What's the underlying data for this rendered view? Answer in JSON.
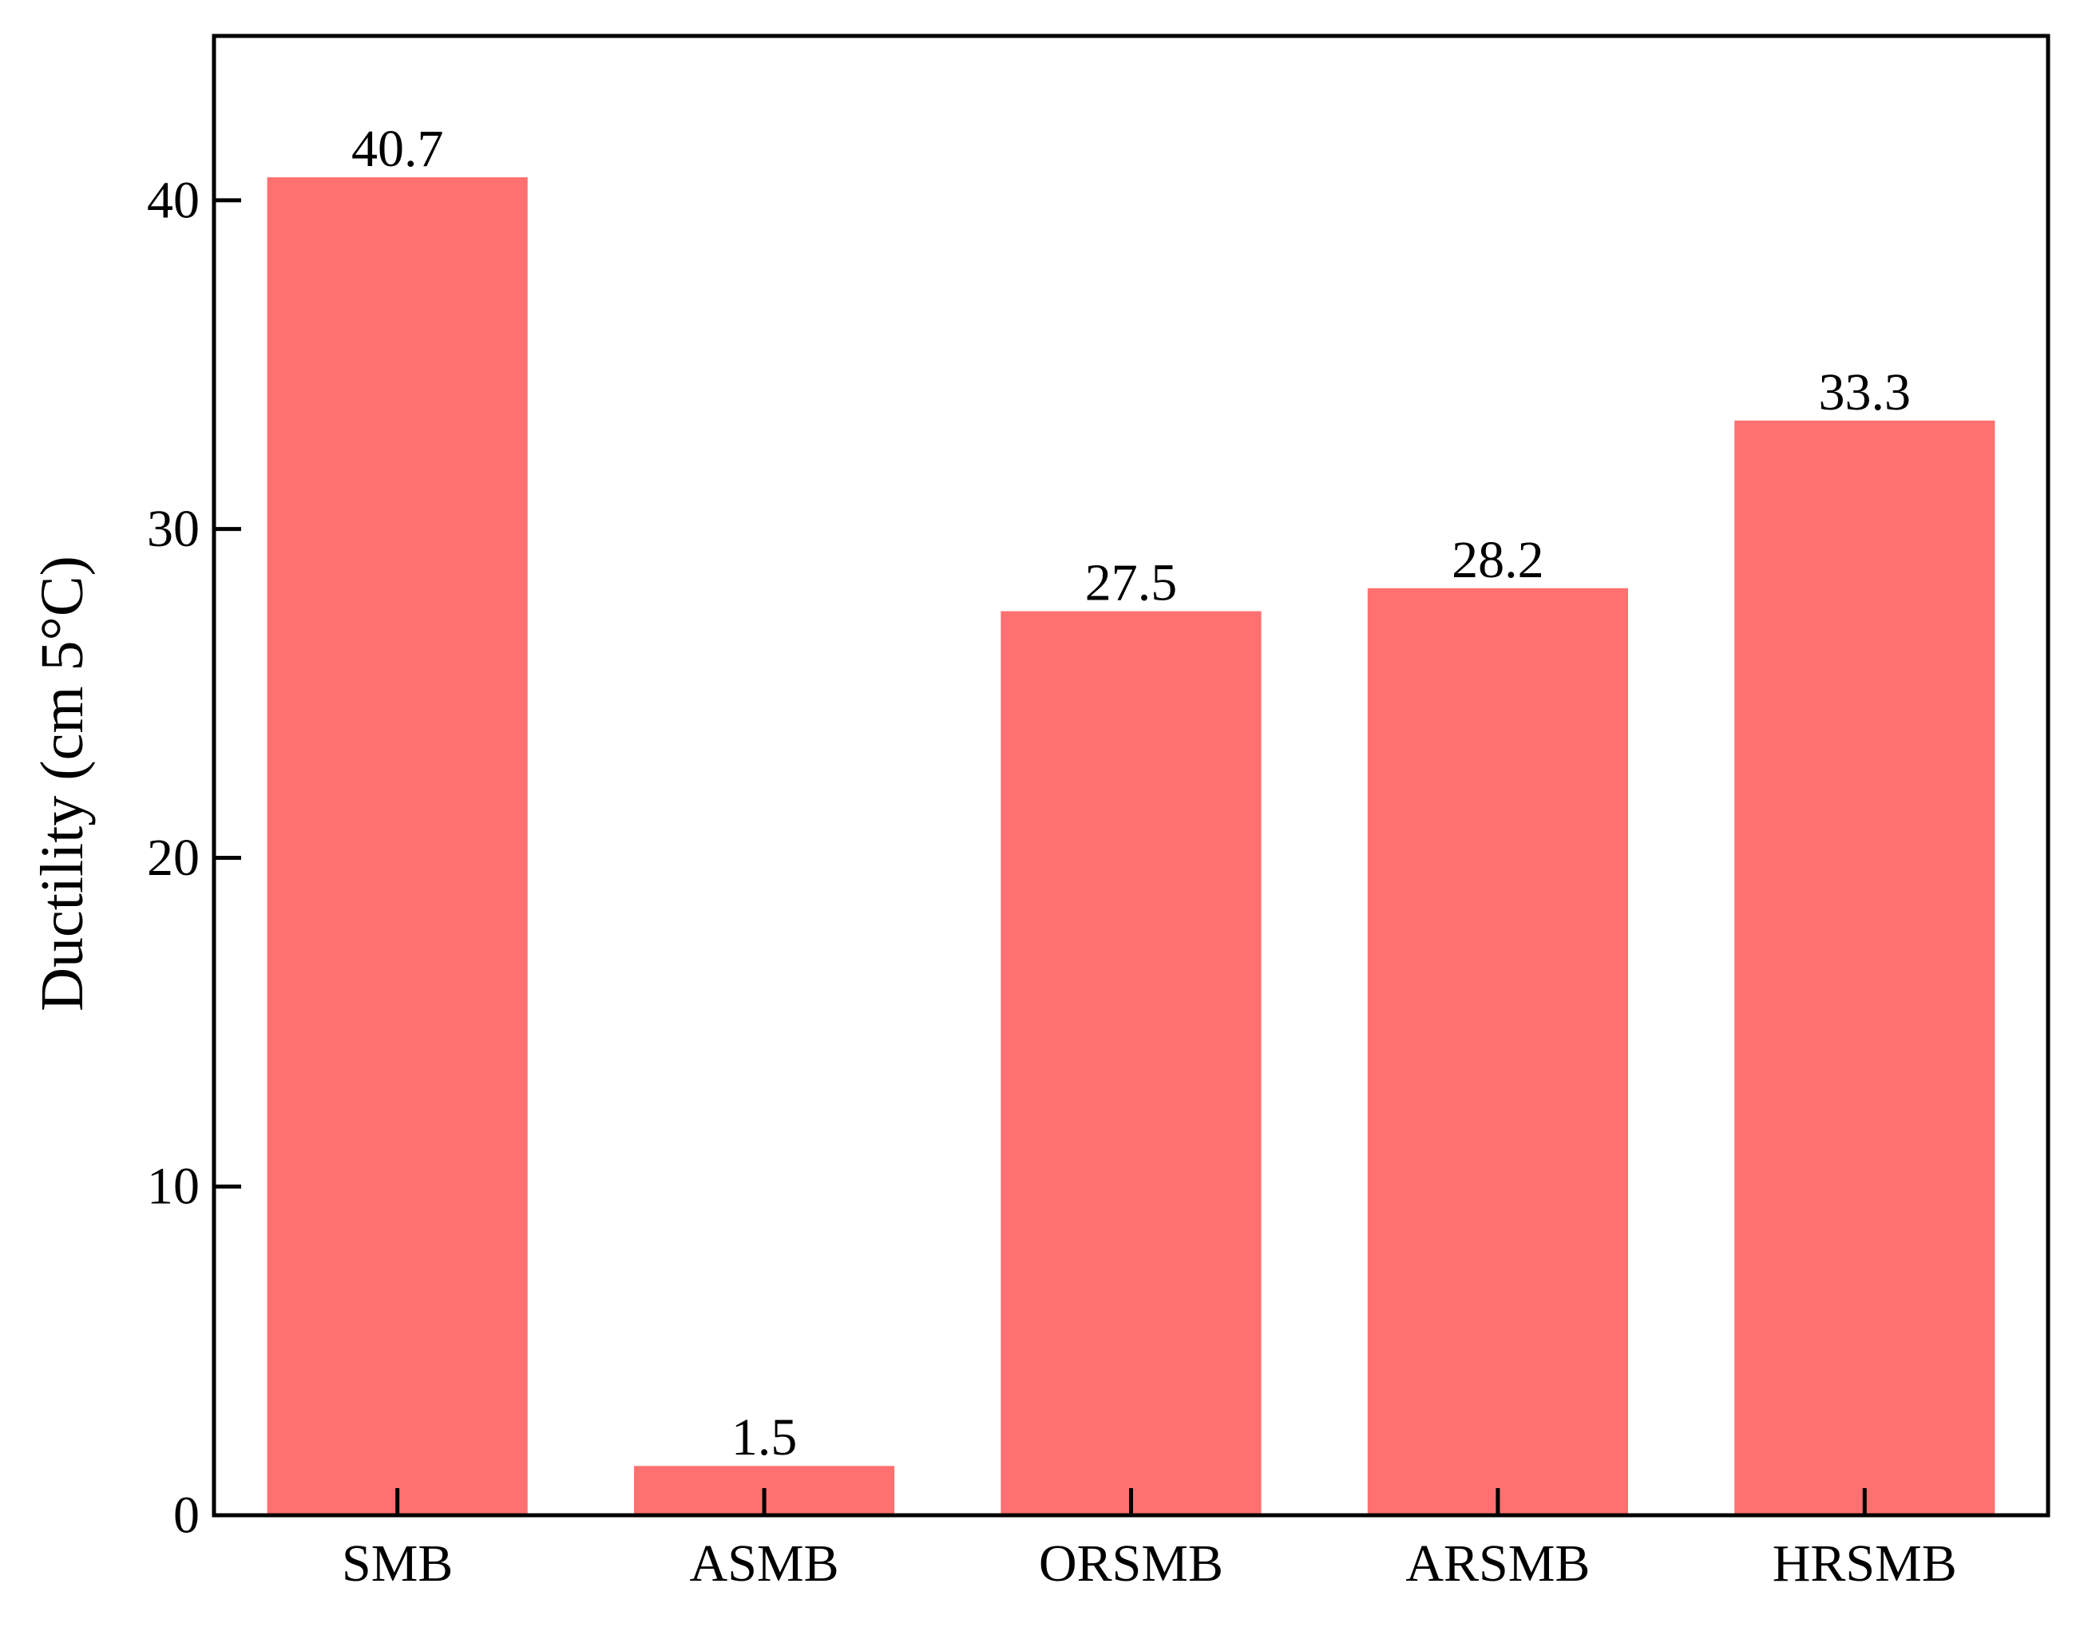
{
  "chart_data": {
    "type": "bar",
    "title": "",
    "xlabel": "",
    "ylabel": "Ductility (cm 5°C)",
    "categories": [
      "SMB",
      "ASMB",
      "ORSMB",
      "ARSMB",
      "HRSMB"
    ],
    "values": [
      40.7,
      1.5,
      27.5,
      28.2,
      33.3
    ],
    "data_labels": [
      "40.7",
      "1.5",
      "27.5",
      "28.2",
      "33.3"
    ],
    "ylim": [
      0,
      45
    ],
    "yticks": [
      0,
      10,
      20,
      30,
      40
    ],
    "ytick_labels": [
      "0",
      "10",
      "20",
      "30",
      "40"
    ],
    "bar_color": "#FF7070",
    "grid": false,
    "legend": "none"
  }
}
